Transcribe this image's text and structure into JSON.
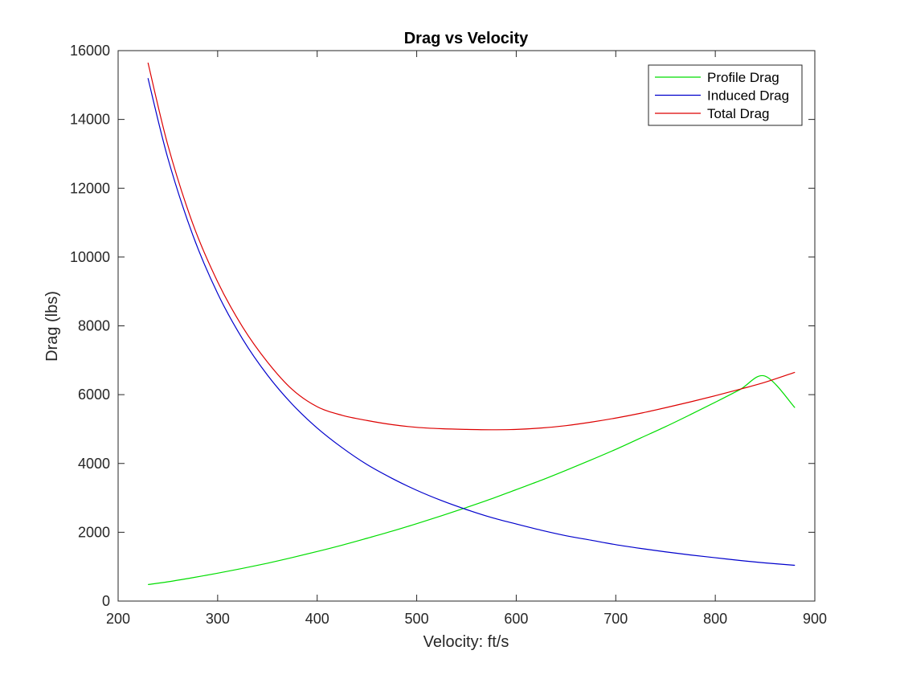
{
  "chart_data": {
    "type": "line",
    "title": "Drag vs Velocity",
    "xlabel": "Velocity: ft/s",
    "ylabel": "Drag (lbs)",
    "xlim": [
      200,
      900
    ],
    "ylim": [
      0,
      16000
    ],
    "xticks": [
      200,
      300,
      400,
      500,
      600,
      700,
      800,
      900
    ],
    "yticks": [
      0,
      2000,
      4000,
      6000,
      8000,
      10000,
      12000,
      14000,
      16000
    ],
    "grid": false,
    "legend_position": "top-right",
    "series": [
      {
        "name": "Profile Drag",
        "color": "#00dd00",
        "x": [
          230,
          250,
          275,
          300,
          325,
          350,
          375,
          400,
          425,
          450,
          475,
          500,
          525,
          550,
          575,
          600,
          625,
          650,
          675,
          700,
          725,
          750,
          775,
          800,
          825,
          850,
          880
        ],
        "y": [
          480,
          560,
          680,
          810,
          950,
          1100,
          1265,
          1440,
          1625,
          1825,
          2030,
          2250,
          2480,
          2720,
          2970,
          3240,
          3510,
          3800,
          4100,
          4410,
          4740,
          5070,
          5420,
          5780,
          6150,
          6540,
          5620
        ]
      },
      {
        "name": "Induced Drag",
        "color": "#0000cc",
        "x": [
          230,
          250,
          275,
          300,
          325,
          350,
          375,
          400,
          425,
          450,
          475,
          500,
          525,
          550,
          575,
          600,
          625,
          650,
          675,
          700,
          725,
          750,
          775,
          800,
          825,
          850,
          880
        ],
        "y": [
          15200,
          12870,
          10640,
          8940,
          7620,
          6570,
          5720,
          5030,
          4460,
          3970,
          3570,
          3220,
          2920,
          2660,
          2430,
          2240,
          2060,
          1900,
          1770,
          1640,
          1530,
          1430,
          1340,
          1260,
          1180,
          1110,
          1040
        ]
      },
      {
        "name": "Total Drag",
        "color": "#dd0000",
        "x": [
          230,
          250,
          275,
          300,
          325,
          350,
          375,
          400,
          425,
          450,
          475,
          500,
          525,
          550,
          575,
          600,
          625,
          650,
          675,
          700,
          725,
          750,
          775,
          800,
          825,
          850,
          880
        ],
        "y": [
          15650,
          13250,
          10970,
          9280,
          7970,
          6950,
          6150,
          5650,
          5400,
          5250,
          5130,
          5050,
          5010,
          4990,
          4980,
          4990,
          5030,
          5100,
          5200,
          5320,
          5460,
          5620,
          5790,
          5970,
          6160,
          6360,
          6650
        ]
      }
    ]
  }
}
